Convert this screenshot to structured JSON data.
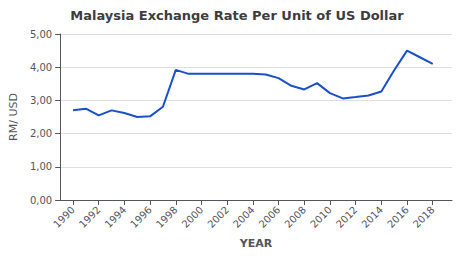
{
  "chart_data": {
    "type": "line",
    "title": "Malaysia Exchange Rate Per Unit of US Dollar",
    "xlabel": "YEAR",
    "ylabel": "RM/ USD",
    "color": "#1a4fcc",
    "x": [
      1990,
      1991,
      1992,
      1993,
      1994,
      1995,
      1996,
      1997,
      1998,
      1999,
      2000,
      2001,
      2002,
      2003,
      2004,
      2005,
      2006,
      2007,
      2008,
      2009,
      2010,
      2011,
      2012,
      2013,
      2014,
      2015,
      2016,
      2017,
      2018
    ],
    "values": [
      2.7,
      2.75,
      2.55,
      2.7,
      2.62,
      2.5,
      2.52,
      2.81,
      3.92,
      3.8,
      3.8,
      3.8,
      3.8,
      3.8,
      3.8,
      3.78,
      3.67,
      3.44,
      3.33,
      3.52,
      3.22,
      3.06,
      3.1,
      3.15,
      3.27,
      3.91,
      4.5,
      4.3,
      4.1
    ],
    "xlim": [
      1989.0,
      2019.5
    ],
    "xticks": [
      1990,
      1992,
      1994,
      1996,
      1998,
      2000,
      2002,
      2004,
      2006,
      2008,
      2010,
      2012,
      2014,
      2016,
      2018
    ],
    "ylim": [
      0,
      5.0
    ],
    "yticks": [
      {
        "value": 0.0,
        "label": "0,00"
      },
      {
        "value": 1.0,
        "label": "1,00"
      },
      {
        "value": 2.0,
        "label": "2,00"
      },
      {
        "value": 3.0,
        "label": "3,00"
      },
      {
        "value": 4.0,
        "label": "4,00"
      },
      {
        "value": 5.0,
        "label": "5,00"
      }
    ],
    "grid": true
  }
}
